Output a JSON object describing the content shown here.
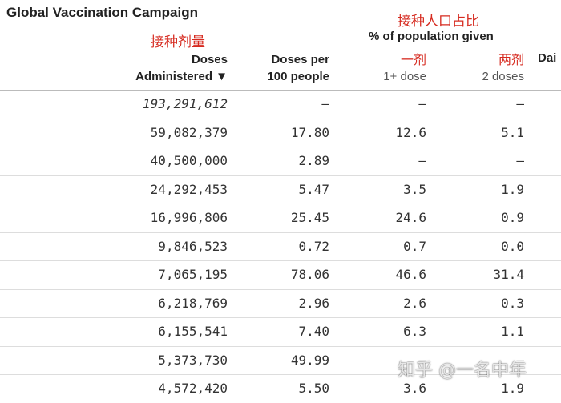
{
  "title": "Global Vaccination Campaign",
  "annotations": {
    "doses_cn": "接种剂量",
    "pct_cn": "接种人口占比",
    "one_dose_cn": "一剂",
    "two_doses_cn": "两剂"
  },
  "headers": {
    "pct_group": "% of population given",
    "doses_line1": "Doses",
    "doses_line2": "Administered ▼",
    "per100_line1": "Doses per",
    "per100_line2": "100 people",
    "one_dose": "1+ dose",
    "two_doses": "2 doses",
    "daily": "Dai"
  },
  "rows": [
    {
      "doses": "193,291,612",
      "per100": "–",
      "one": "–",
      "two": "–"
    },
    {
      "doses": "59,082,379",
      "per100": "17.80",
      "one": "12.6",
      "two": "5.1"
    },
    {
      "doses": "40,500,000",
      "per100": "2.89",
      "one": "–",
      "two": "–"
    },
    {
      "doses": "24,292,453",
      "per100": "5.47",
      "one": "3.5",
      "two": "1.9"
    },
    {
      "doses": "16,996,806",
      "per100": "25.45",
      "one": "24.6",
      "two": "0.9"
    },
    {
      "doses": "9,846,523",
      "per100": "0.72",
      "one": "0.7",
      "two": "0.0"
    },
    {
      "doses": "7,065,195",
      "per100": "78.06",
      "one": "46.6",
      "two": "31.4"
    },
    {
      "doses": "6,218,769",
      "per100": "2.96",
      "one": "2.6",
      "two": "0.3"
    },
    {
      "doses": "6,155,541",
      "per100": "7.40",
      "one": "6.3",
      "two": "1.1"
    },
    {
      "doses": "5,373,730",
      "per100": "49.99",
      "one": "–",
      "two": "–"
    },
    {
      "doses": "4,572,420",
      "per100": "5.50",
      "one": "3.6",
      "two": "1.9"
    }
  ],
  "watermark": "知乎 @一名中年"
}
